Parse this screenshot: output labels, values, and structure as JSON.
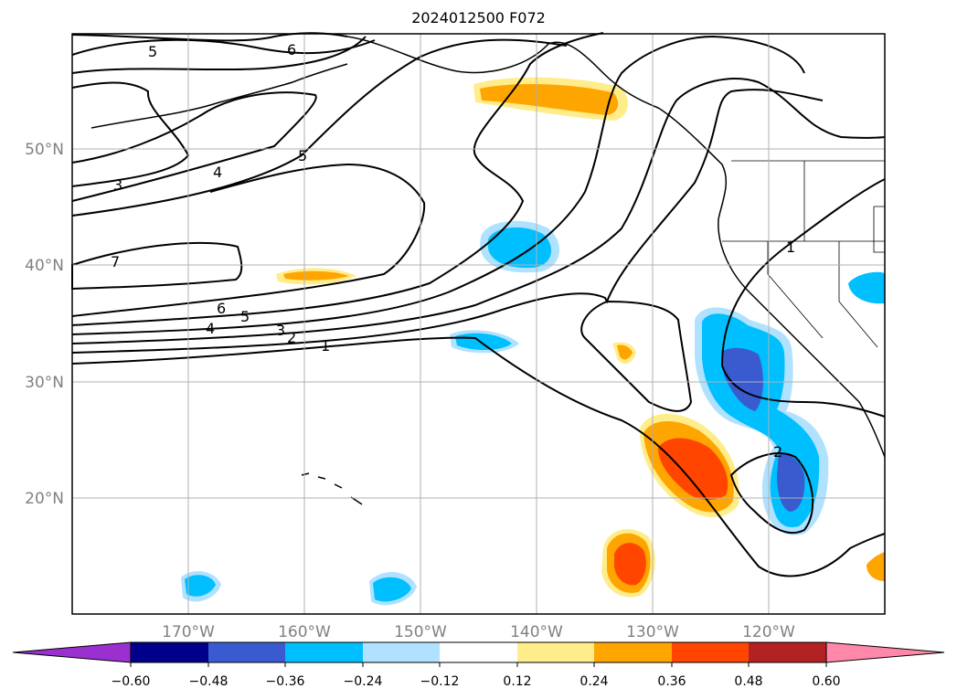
{
  "title": "2024012500 F072",
  "map": {
    "lat_labels": [
      "50°N",
      "40°N",
      "30°N",
      "20°N"
    ],
    "lon_labels": [
      "170°W",
      "160°W",
      "150°W",
      "140°W",
      "130°W",
      "120°W"
    ],
    "contour_labels": [
      "5",
      "6",
      "3",
      "4",
      "5",
      "7",
      "6",
      "5",
      "4",
      "3",
      "2",
      "1",
      "1",
      "2"
    ]
  },
  "colorbar": {
    "ticks": [
      "−0.60",
      "−0.48",
      "−0.36",
      "−0.24",
      "−0.12",
      "0.12",
      "0.24",
      "0.36",
      "0.48",
      "0.60"
    ],
    "colors": [
      "#9b30d0",
      "#00008b",
      "#3a5bd0",
      "#00bfff",
      "#b0e2ff",
      "#ffffff",
      "#ffec8b",
      "#ffa500",
      "#ff4500",
      "#b22222",
      "#ff88aa"
    ]
  }
}
